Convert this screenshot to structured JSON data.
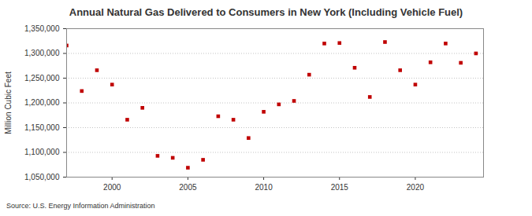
{
  "chart_data": {
    "type": "scatter",
    "title": "Annual Natural Gas Delivered to Consumers in New York (Including Vehicle Fuel)",
    "y_label": "Million Cubic Feet",
    "caption": "Source: U.S. Energy Information Administration",
    "x": [
      1997,
      1998,
      1999,
      2000,
      2001,
      2002,
      2003,
      2004,
      2005,
      2006,
      2007,
      2008,
      2009,
      2010,
      2011,
      2012,
      2013,
      2014,
      2015,
      2016,
      2017,
      2018,
      2019,
      2020,
      2021,
      2022,
      2023,
      2024
    ],
    "values": [
      1316000,
      1224000,
      1266000,
      1237000,
      1166000,
      1190000,
      1093000,
      1089000,
      1069000,
      1085000,
      1173000,
      1166000,
      1129000,
      1182000,
      1197000,
      1204000,
      1257000,
      1320000,
      1321000,
      1271000,
      1212000,
      1323000,
      1266000,
      1237000,
      1282000,
      1320000,
      1281000,
      1300000
    ],
    "color": "#c00000",
    "marker": "square",
    "xlim": [
      1997,
      2024.5
    ],
    "xticks": [
      2000,
      2005,
      2010,
      2015,
      2020
    ],
    "ylim": [
      1050000,
      1350000
    ],
    "yticks": [
      {
        "value": 1050000,
        "label": "1,050,000"
      },
      {
        "value": 1100000,
        "label": "1,100,000"
      },
      {
        "value": 1150000,
        "label": "1,150,000"
      },
      {
        "value": 1200000,
        "label": "1,200,000"
      },
      {
        "value": 1250000,
        "label": "1,250,000"
      },
      {
        "value": 1300000,
        "label": "1,300,000"
      },
      {
        "value": 1350000,
        "label": "1,350,000"
      }
    ],
    "grid": true
  }
}
